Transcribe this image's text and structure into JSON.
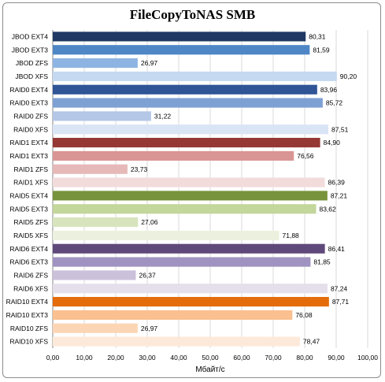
{
  "chart_data": {
    "type": "bar",
    "orientation": "horizontal",
    "title": "FileCopyToNAS SMB",
    "xlabel": "Мбайт/с",
    "ylabel": "",
    "xlim": [
      0,
      100
    ],
    "xticks": [
      "0,00",
      "10,00",
      "20,00",
      "30,00",
      "40,00",
      "50,00",
      "60,00",
      "70,00",
      "80,00",
      "90,00",
      "100,00"
    ],
    "grid": true,
    "legend": "none",
    "categories": [
      "JBOD EXT4",
      "JBOD EXT3",
      "JBOD ZFS",
      "JBOD XFS",
      "RAID0 EXT4",
      "RAID0 EXT3",
      "RAID0 ZFS",
      "RAID0 XFS",
      "RAID1 EXT4",
      "RAID1 EXT3",
      "RAID1 ZFS",
      "RAID1 XFS",
      "RAID5 EXT4",
      "RAID5 EXT3",
      "RAID5 ZFS",
      "RAID5 XFS",
      "RAID6 EXT4",
      "RAID6 EXT3",
      "RAID6 ZFS",
      "RAID6 XFS",
      "RAID10 EXT4",
      "RAID10 EXT3",
      "RAID10 ZFS",
      "RAID10 XFS"
    ],
    "values": [
      80.31,
      81.59,
      26.97,
      90.2,
      83.96,
      85.72,
      31.22,
      87.51,
      84.9,
      76.56,
      23.73,
      86.39,
      87.21,
      83.62,
      27.06,
      71.88,
      86.41,
      81.85,
      26.37,
      87.24,
      87.71,
      76.08,
      26.97,
      78.47
    ],
    "value_labels": [
      "80,31",
      "81,59",
      "26,97",
      "90,20",
      "83,96",
      "85,72",
      "31,22",
      "87,51",
      "84,90",
      "76,56",
      "23,73",
      "86,39",
      "87,21",
      "83,62",
      "27,06",
      "71,88",
      "86,41",
      "81,85",
      "26,37",
      "87,24",
      "87,71",
      "76,08",
      "26,97",
      "78,47"
    ],
    "colors": [
      "#1f3864",
      "#4f86c6",
      "#8eb4e3",
      "#c5d9f1",
      "#2f5597",
      "#7ea1d4",
      "#b4c7e7",
      "#d9e4f5",
      "#953735",
      "#d99594",
      "#e6b9b8",
      "#f2dcdb",
      "#77933c",
      "#c3d69b",
      "#d7e4bd",
      "#ebf1de",
      "#5f497a",
      "#a093c1",
      "#ccc1da",
      "#e5dfec",
      "#e46c0a",
      "#fac090",
      "#fcd5b4",
      "#fde9d9"
    ]
  }
}
